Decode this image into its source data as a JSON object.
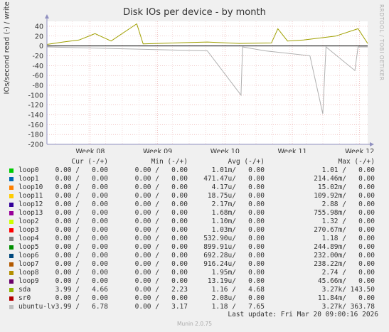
{
  "chart_data": {
    "type": "line",
    "title": "Disk IOs per device - by month",
    "ylabel": "IOs/second read (-) / write (+)",
    "xlabel": "",
    "ylim": [
      -200,
      50
    ],
    "yticks": [
      40,
      20,
      0,
      -20,
      -40,
      -60,
      -80,
      -100,
      -120,
      -140,
      -160,
      -180,
      -200
    ],
    "xticks": [
      "Week 08",
      "Week 09",
      "Week 10",
      "Week 11",
      "Week 12"
    ],
    "grid": true,
    "legend": "bottom",
    "series": [
      {
        "name": "sda",
        "color": "#a0a000",
        "points": [
          [
            0,
            3
          ],
          [
            0.05,
            8
          ],
          [
            0.1,
            12
          ],
          [
            0.15,
            25
          ],
          [
            0.2,
            10
          ],
          [
            0.28,
            45
          ],
          [
            0.3,
            4
          ],
          [
            0.4,
            6
          ],
          [
            0.5,
            8
          ],
          [
            0.6,
            5
          ],
          [
            0.7,
            6
          ],
          [
            0.72,
            35
          ],
          [
            0.75,
            10
          ],
          [
            0.8,
            12
          ],
          [
            0.9,
            20
          ],
          [
            0.97,
            35
          ],
          [
            1,
            5
          ]
        ]
      },
      {
        "name": "ubuntu-lv",
        "color": "#b0b0b0",
        "points": [
          [
            0,
            -2
          ],
          [
            0.5,
            -10
          ],
          [
            0.605,
            -100
          ],
          [
            0.61,
            -2
          ],
          [
            0.68,
            -10
          ],
          [
            0.82,
            -20
          ],
          [
            0.86,
            -138
          ],
          [
            0.87,
            -2
          ],
          [
            0.96,
            -50
          ],
          [
            0.97,
            -2
          ],
          [
            1,
            -2
          ]
        ]
      }
    ]
  },
  "legend": {
    "headers": {
      "cur": "Cur (-/+)",
      "min": "Min (-/+)",
      "avg": "Avg (-/+)",
      "max": "Max (-/+)"
    },
    "rows": [
      {
        "name": "loop0",
        "color": "#00cc00",
        "cur": "0.00 /   0.00",
        "min": "0.00 /   0.00",
        "avg": "1.01m/   0.00",
        "max": "1.01 /   0.00"
      },
      {
        "name": "loop1",
        "color": "#0066b3",
        "cur": "0.00 /   0.00",
        "min": "0.00 /   0.00",
        "avg": "471.47u/   0.00",
        "max": "214.46m/   0.00"
      },
      {
        "name": "loop10",
        "color": "#ff8000",
        "cur": "0.00 /   0.00",
        "min": "0.00 /   0.00",
        "avg": "4.17u/   0.00",
        "max": "15.02m/   0.00"
      },
      {
        "name": "loop11",
        "color": "#ffcc00",
        "cur": "0.00 /   0.00",
        "min": "0.00 /   0.00",
        "avg": "18.75u/   0.00",
        "max": "109.92m/   0.00"
      },
      {
        "name": "loop12",
        "color": "#330099",
        "cur": "0.00 /   0.00",
        "min": "0.00 /   0.00",
        "avg": "2.17m/   0.00",
        "max": "2.88 /   0.00"
      },
      {
        "name": "loop13",
        "color": "#990099",
        "cur": "0.00 /   0.00",
        "min": "0.00 /   0.00",
        "avg": "1.68m/   0.00",
        "max": "755.98m/   0.00"
      },
      {
        "name": "loop2",
        "color": "#ccff00",
        "cur": "0.00 /   0.00",
        "min": "0.00 /   0.00",
        "avg": "1.10m/   0.00",
        "max": "1.32 /   0.00"
      },
      {
        "name": "loop3",
        "color": "#ff0000",
        "cur": "0.00 /   0.00",
        "min": "0.00 /   0.00",
        "avg": "1.03m/   0.00",
        "max": "270.67m/   0.00"
      },
      {
        "name": "loop4",
        "color": "#808080",
        "cur": "0.00 /   0.00",
        "min": "0.00 /   0.00",
        "avg": "532.90u/   0.00",
        "max": "1.18 /   0.00"
      },
      {
        "name": "loop5",
        "color": "#008f00",
        "cur": "0.00 /   0.00",
        "min": "0.00 /   0.00",
        "avg": "899.91u/   0.00",
        "max": "244.89m/   0.00"
      },
      {
        "name": "loop6",
        "color": "#00487d",
        "cur": "0.00 /   0.00",
        "min": "0.00 /   0.00",
        "avg": "692.28u/   0.00",
        "max": "232.00m/   0.00"
      },
      {
        "name": "loop7",
        "color": "#b35a00",
        "cur": "0.00 /   0.00",
        "min": "0.00 /   0.00",
        "avg": "916.24u/   0.00",
        "max": "238.22m/   0.00"
      },
      {
        "name": "loop8",
        "color": "#b38f00",
        "cur": "0.00 /   0.00",
        "min": "0.00 /   0.00",
        "avg": "1.95m/   0.00",
        "max": "2.74 /   0.00"
      },
      {
        "name": "loop9",
        "color": "#6b006b",
        "cur": "0.00 /   0.00",
        "min": "0.00 /   0.00",
        "avg": "13.19u/   0.00",
        "max": "45.66m/   0.00"
      },
      {
        "name": "sda",
        "color": "#8fb300",
        "cur": "3.99 /   4.66",
        "min": "0.00 /   2.23",
        "avg": "1.16 /   4.68",
        "max": "3.27k/ 143.50"
      },
      {
        "name": "sr0",
        "color": "#b30000",
        "cur": "0.00 /   0.00",
        "min": "0.00 /   0.00",
        "avg": "2.08u/   0.00",
        "max": "11.84m/   0.00"
      },
      {
        "name": "ubuntu-lv",
        "color": "#bebebe",
        "cur": "3.99 /   6.78",
        "min": "0.00 /   3.17",
        "avg": "1.18 /   7.65",
        "max": "3.27k/ 363.78"
      }
    ]
  },
  "last_update": "Last update: Fri Mar 20 09:00:16 2026",
  "watermark": "RRDTOOL / TOBI OETIKER",
  "footer": "Munin 2.0.75"
}
